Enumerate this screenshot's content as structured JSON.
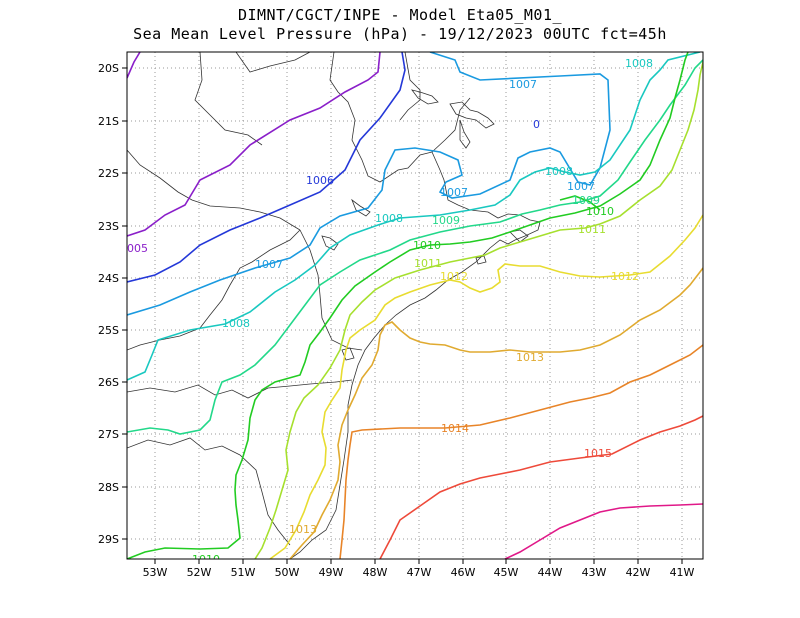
{
  "title_line1": "DIMNT/CGCT/INPE -  Model Eta05_M01_",
  "title_line2": "Sea Mean Level Pressure (hPa) - 19/12/2023 00UTC fct=45h",
  "lon_labels": [
    "53W",
    "52W",
    "51W",
    "50W",
    "49W",
    "48W",
    "47W",
    "46W",
    "45W",
    "44W",
    "43W",
    "42W",
    "41W"
  ],
  "lat_labels": [
    "20S",
    "21S",
    "22S",
    "23S",
    "24S",
    "25S",
    "26S",
    "27S",
    "28S",
    "29S"
  ],
  "isobars": [
    {
      "value": "1005",
      "color": "#8a1fc9",
      "labels": [
        "005"
      ]
    },
    {
      "value": "1006",
      "color": "#2438d8",
      "labels": [
        "1006"
      ]
    },
    {
      "value": "1007",
      "color": "#1a9ae0",
      "labels": [
        "1007",
        "1007",
        "1007",
        "1007"
      ]
    },
    {
      "value": "1008",
      "color": "#19c8c0",
      "labels": [
        "1008",
        "1008",
        "1008",
        "1008"
      ]
    },
    {
      "value": "1009",
      "color": "#22d88a",
      "labels": [
        "1009",
        "1009"
      ]
    },
    {
      "value": "1010",
      "color": "#22cc22",
      "labels": [
        "1010",
        "1010",
        "1010"
      ]
    },
    {
      "value": "1011",
      "color": "#a6e02e",
      "labels": [
        "1011",
        "1011"
      ]
    },
    {
      "value": "1012",
      "color": "#e8dc30",
      "labels": [
        "1012",
        "1012"
      ]
    },
    {
      "value": "1013",
      "color": "#e0aa30",
      "labels": [
        "1013",
        "1013"
      ]
    },
    {
      "value": "1014",
      "color": "#e88428",
      "labels": [
        "1014"
      ]
    },
    {
      "value": "1015",
      "color": "#ee4a3a",
      "labels": [
        "1015"
      ]
    },
    {
      "value": "1016",
      "color": "#e01888",
      "labels": []
    }
  ],
  "low_marker": "0"
}
